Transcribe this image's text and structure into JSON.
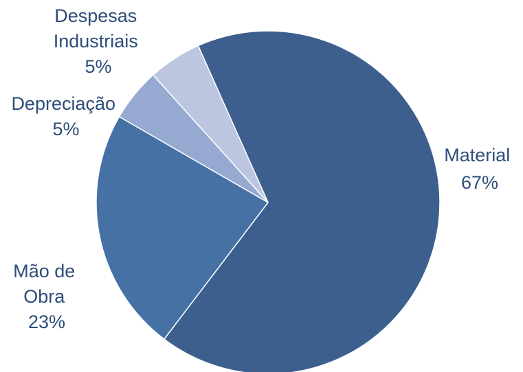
{
  "chart_data": {
    "type": "pie",
    "title": "",
    "slices": [
      {
        "name": "Material",
        "label_lines": [
          "Material",
          "67%"
        ],
        "value": 67,
        "color": "#3c5f8e"
      },
      {
        "name": "Mão de Obra",
        "label_lines": [
          "Mão de",
          "Obra",
          "23%"
        ],
        "value": 23,
        "color": "#4571a5"
      },
      {
        "name": "Depreciação",
        "label_lines": [
          "Depreciação",
          "5%"
        ],
        "value": 5,
        "color": "#95a9d1"
      },
      {
        "name": "Despesas Industriais",
        "label_lines": [
          "Despesas",
          "Industriais",
          "5%"
        ],
        "value": 5,
        "color": "#bcc6e0"
      }
    ],
    "start_angle_deg": -24,
    "direction": "clockwise",
    "legend": "none",
    "label_color": "#2e4d78"
  }
}
